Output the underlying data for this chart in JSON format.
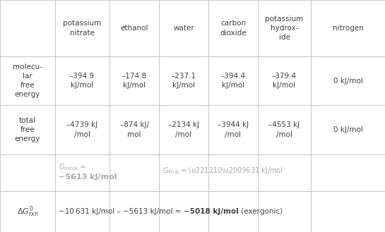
{
  "col_lefts": [
    0,
    78,
    155,
    225,
    295,
    365,
    440,
    545
  ],
  "row_tops": [
    0,
    80,
    149,
    219,
    271,
    329
  ],
  "col_headers": [
    "",
    "potassium\nnitrate",
    "ethanol",
    "water",
    "carbon\ndioxide",
    "potassium\nhydrox-\nide",
    "nitrogen"
  ],
  "row0_label": "",
  "row1_label": "molecu-\nlar\nfree\nenergy",
  "row2_label": "total\nfree\nenergy",
  "row3_label": "",
  "row4_label": "delta_g",
  "mol_vals": [
    "–394.9\nkJ/mol",
    "–174.8\nkJ/mol",
    "–237.1\nkJ/mol",
    "–394.4\nkJ/mol",
    "–379.4\nkJ/mol",
    "0 kJ/mol"
  ],
  "tot_vals": [
    "–4739 kJ\n/mol",
    "–874 kJ/\nmol",
    "–2134 kJ\n/mol",
    "–3944 kJ\n/mol",
    "–4553 kJ\n/mol",
    "0 kJ/mol"
  ],
  "g_init_line1": "Gᵢₙᵢₜᵢₐₗ =",
  "g_init_line2": "−5613 kJ/mol",
  "g_final_text": "G₍ᵢₙₐₗ₎ = −10 631 kJ/mol",
  "bottom_prefix": "−10 631 kJ/mol – −5613 kJ/mol = ",
  "bottom_bold": "−5018 kJ/mol",
  "bottom_suffix": " (exergonic)",
  "text_color": "#404040",
  "gray_color": "#aaaaaa",
  "border_color": "#c0c0c0",
  "bg_color": "#ffffff",
  "font_size": 7.5,
  "font_size_small": 7.0
}
